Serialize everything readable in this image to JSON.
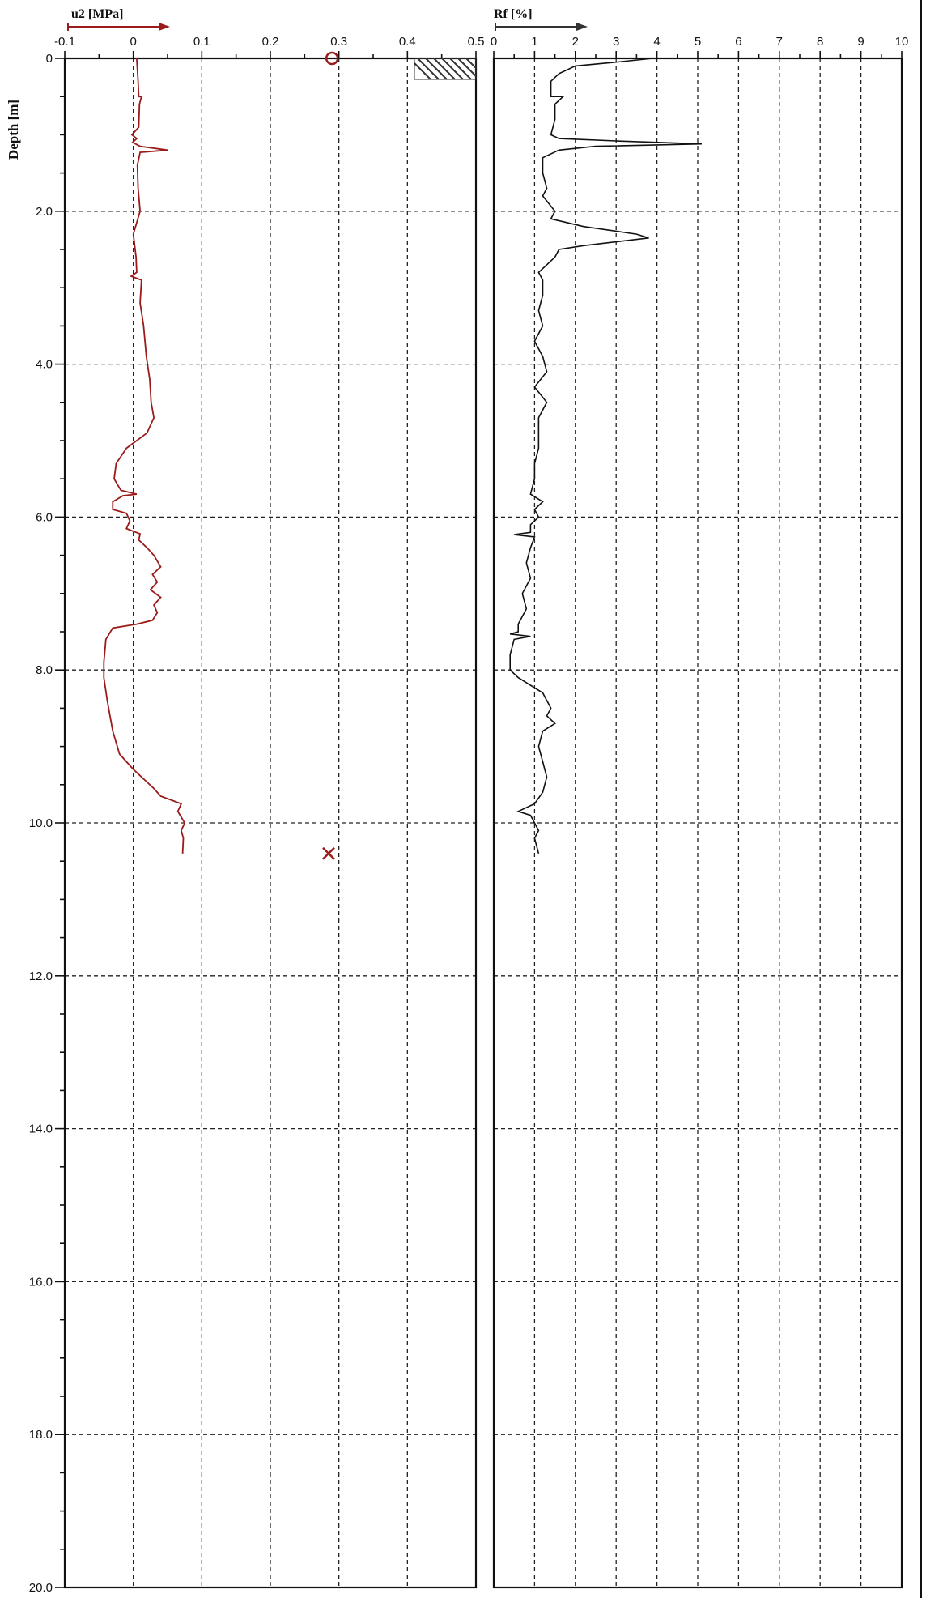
{
  "chart_data": [
    {
      "type": "line",
      "title": "u2 [MPa]",
      "ylabel": "Depth [m]",
      "xlim": [
        -0.1,
        0.5
      ],
      "ylim": [
        0,
        20
      ],
      "x_ticks": [
        "-0.1",
        "0",
        "0.1",
        "0.2",
        "0.3",
        "0.4",
        "0.5"
      ],
      "y_ticks": [
        "0",
        "2.0",
        "4.0",
        "6.0",
        "8.0",
        "10.0",
        "12.0",
        "14.0",
        "16.0",
        "18.0",
        "20.0"
      ],
      "grid": true,
      "series": [
        {
          "color": "#9b1b1b",
          "points": [
            [
              0.005,
              0.0
            ],
            [
              0.007,
              0.3
            ],
            [
              0.008,
              0.5
            ],
            [
              0.012,
              0.5
            ],
            [
              0.009,
              0.6
            ],
            [
              0.008,
              0.9
            ],
            [
              -0.002,
              1.0
            ],
            [
              0.005,
              1.05
            ],
            [
              -0.001,
              1.1
            ],
            [
              0.01,
              1.15
            ],
            [
              0.05,
              1.2
            ],
            [
              0.01,
              1.23
            ],
            [
              0.006,
              1.4
            ],
            [
              0.007,
              1.7
            ],
            [
              0.01,
              2.0
            ],
            [
              0.0,
              2.3
            ],
            [
              0.004,
              2.6
            ],
            [
              0.005,
              2.8
            ],
            [
              -0.003,
              2.85
            ],
            [
              0.012,
              2.9
            ],
            [
              0.01,
              3.2
            ],
            [
              0.015,
              3.5
            ],
            [
              0.019,
              3.9
            ],
            [
              0.024,
              4.2
            ],
            [
              0.026,
              4.5
            ],
            [
              0.03,
              4.7
            ],
            [
              0.02,
              4.9
            ],
            [
              -0.01,
              5.1
            ],
            [
              -0.025,
              5.3
            ],
            [
              -0.028,
              5.5
            ],
            [
              -0.018,
              5.65
            ],
            [
              0.005,
              5.7
            ],
            [
              -0.015,
              5.72
            ],
            [
              -0.03,
              5.8
            ],
            [
              -0.03,
              5.9
            ],
            [
              -0.01,
              5.95
            ],
            [
              -0.005,
              6.05
            ],
            [
              -0.01,
              6.15
            ],
            [
              0.01,
              6.22
            ],
            [
              0.008,
              6.3
            ],
            [
              0.02,
              6.4
            ],
            [
              0.03,
              6.5
            ],
            [
              0.04,
              6.65
            ],
            [
              0.028,
              6.75
            ],
            [
              0.035,
              6.85
            ],
            [
              0.025,
              6.95
            ],
            [
              0.04,
              7.05
            ],
            [
              0.03,
              7.15
            ],
            [
              0.035,
              7.25
            ],
            [
              0.028,
              7.35
            ],
            [
              0.005,
              7.4
            ],
            [
              -0.03,
              7.45
            ],
            [
              -0.04,
              7.6
            ],
            [
              -0.043,
              7.9
            ],
            [
              -0.043,
              8.1
            ],
            [
              -0.038,
              8.4
            ],
            [
              -0.03,
              8.8
            ],
            [
              -0.02,
              9.1
            ],
            [
              0.0,
              9.3
            ],
            [
              0.03,
              9.55
            ],
            [
              0.04,
              9.65
            ],
            [
              0.07,
              9.75
            ],
            [
              0.065,
              9.85
            ],
            [
              0.075,
              10.0
            ],
            [
              0.07,
              10.1
            ],
            [
              0.073,
              10.2
            ],
            [
              0.072,
              10.4
            ]
          ]
        }
      ],
      "markers": [
        {
          "symbol": "o",
          "x": 0.29,
          "y": 0.0,
          "color": "#9b1b1b"
        },
        {
          "symbol": "x",
          "x": 0.285,
          "y": 10.4,
          "color": "#9b1b1b"
        }
      ]
    },
    {
      "type": "line",
      "title": "Rf [%]",
      "xlim": [
        0,
        10
      ],
      "ylim": [
        0,
        20
      ],
      "x_ticks": [
        "0",
        "1",
        "2",
        "3",
        "4",
        "5",
        "6",
        "7",
        "8",
        "9",
        "10"
      ],
      "grid": true,
      "series": [
        {
          "color": "#111111",
          "points": [
            [
              3.9,
              0.0
            ],
            [
              3.0,
              0.05
            ],
            [
              2.0,
              0.1
            ],
            [
              1.6,
              0.2
            ],
            [
              1.4,
              0.3
            ],
            [
              1.4,
              0.5
            ],
            [
              1.7,
              0.5
            ],
            [
              1.5,
              0.6
            ],
            [
              1.5,
              0.8
            ],
            [
              1.4,
              1.0
            ],
            [
              1.6,
              1.05
            ],
            [
              3.0,
              1.08
            ],
            [
              5.1,
              1.12
            ],
            [
              2.5,
              1.15
            ],
            [
              1.6,
              1.2
            ],
            [
              1.2,
              1.3
            ],
            [
              1.2,
              1.5
            ],
            [
              1.3,
              1.7
            ],
            [
              1.2,
              1.8
            ],
            [
              1.5,
              2.0
            ],
            [
              1.4,
              2.1
            ],
            [
              2.2,
              2.2
            ],
            [
              3.5,
              2.3
            ],
            [
              3.8,
              2.35
            ],
            [
              2.2,
              2.45
            ],
            [
              1.6,
              2.5
            ],
            [
              1.5,
              2.6
            ],
            [
              1.3,
              2.7
            ],
            [
              1.1,
              2.8
            ],
            [
              1.2,
              2.9
            ],
            [
              1.2,
              3.1
            ],
            [
              1.1,
              3.3
            ],
            [
              1.2,
              3.5
            ],
            [
              1.0,
              3.7
            ],
            [
              1.2,
              3.9
            ],
            [
              1.3,
              4.1
            ],
            [
              1.0,
              4.3
            ],
            [
              1.3,
              4.5
            ],
            [
              1.1,
              4.7
            ],
            [
              1.1,
              4.9
            ],
            [
              1.1,
              5.1
            ],
            [
              1.0,
              5.3
            ],
            [
              1.0,
              5.5
            ],
            [
              0.9,
              5.7
            ],
            [
              1.2,
              5.8
            ],
            [
              1.0,
              5.9
            ],
            [
              1.1,
              6.0
            ],
            [
              0.9,
              6.1
            ],
            [
              0.9,
              6.2
            ],
            [
              0.5,
              6.23
            ],
            [
              1.0,
              6.26
            ],
            [
              0.9,
              6.4
            ],
            [
              0.8,
              6.6
            ],
            [
              0.9,
              6.8
            ],
            [
              0.7,
              7.0
            ],
            [
              0.8,
              7.2
            ],
            [
              0.6,
              7.4
            ],
            [
              0.6,
              7.5
            ],
            [
              0.4,
              7.53
            ],
            [
              0.9,
              7.56
            ],
            [
              0.5,
              7.6
            ],
            [
              0.4,
              7.8
            ],
            [
              0.4,
              8.0
            ],
            [
              0.6,
              8.1
            ],
            [
              0.9,
              8.2
            ],
            [
              1.2,
              8.3
            ],
            [
              1.4,
              8.5
            ],
            [
              1.3,
              8.6
            ],
            [
              1.5,
              8.7
            ],
            [
              1.2,
              8.8
            ],
            [
              1.1,
              9.0
            ],
            [
              1.2,
              9.2
            ],
            [
              1.3,
              9.4
            ],
            [
              1.2,
              9.6
            ],
            [
              1.0,
              9.75
            ],
            [
              0.6,
              9.85
            ],
            [
              0.9,
              9.9
            ],
            [
              1.0,
              10.0
            ],
            [
              1.1,
              10.1
            ],
            [
              1.0,
              10.2
            ],
            [
              1.1,
              10.4
            ]
          ]
        }
      ]
    }
  ]
}
